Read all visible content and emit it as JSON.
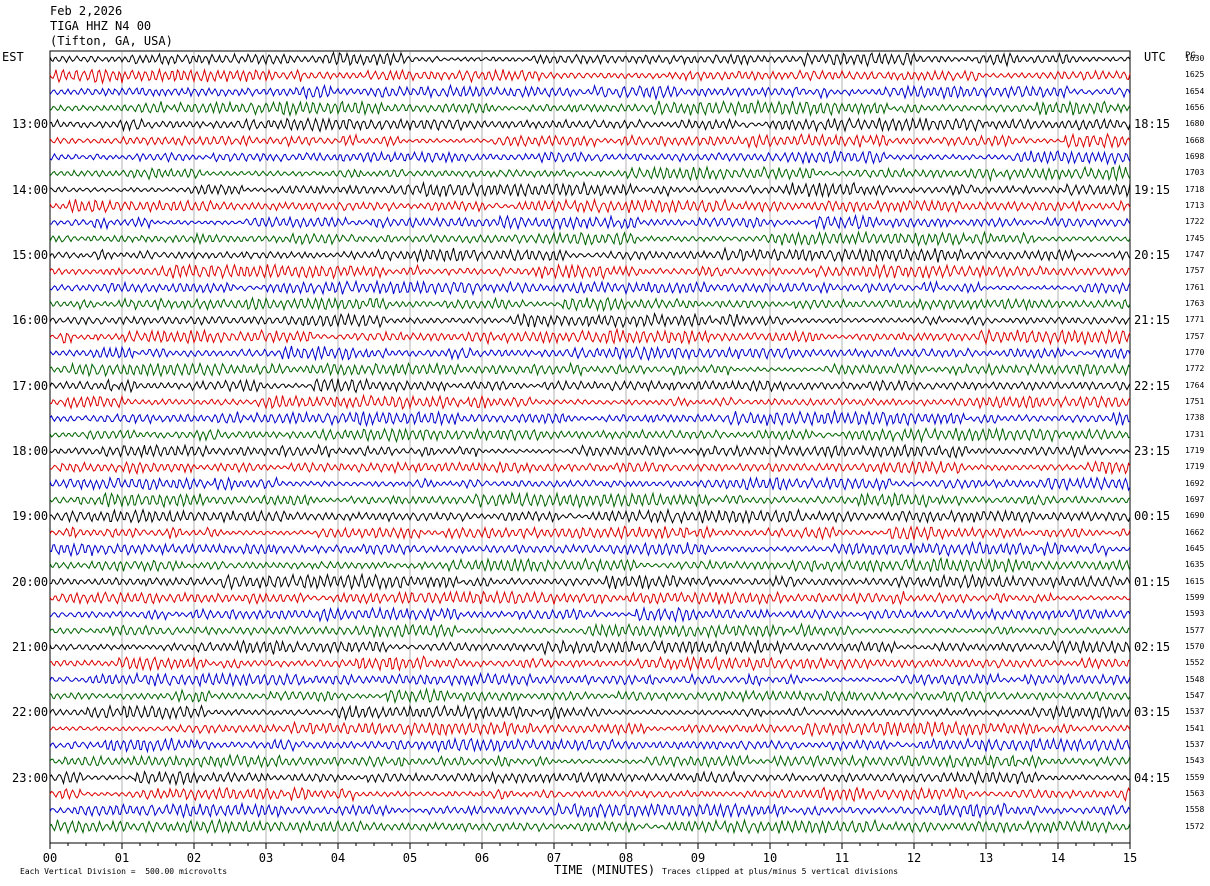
{
  "header": {
    "date": "Feb 2,2026",
    "station": "TIGA HHZ N4 00",
    "location": "(Tifton, GA, USA)"
  },
  "left_axis_label": "EST",
  "right_axis_label": "UTC",
  "rms_label": "PG",
  "footer": {
    "scale": "Each Vertical Division =  500.00 microvolts",
    "xlabel": "TIME (MINUTES)",
    "clip": "Traces clipped at plus/minus 5 vertical divisions"
  },
  "colors": [
    "#000000",
    "#dd0000",
    "#0000cc",
    "#006400"
  ],
  "chart_data": {
    "type": "line",
    "title": "",
    "xlabel": "TIME (MINUTES)",
    "x_ticks": [
      "00",
      "01",
      "02",
      "03",
      "04",
      "05",
      "06",
      "07",
      "08",
      "09",
      "10",
      "11",
      "12",
      "13",
      "14",
      "15"
    ],
    "xlim": [
      0,
      15
    ],
    "grid": true,
    "est_hour_labels": [
      "13:00",
      "14:00",
      "15:00",
      "16:00",
      "17:00",
      "18:00",
      "19:00",
      "20:00",
      "21:00",
      "22:00",
      "23:00"
    ],
    "utc_hour_labels": [
      "18:15",
      "19:15",
      "20:15",
      "21:15",
      "22:15",
      "23:15",
      "00:15",
      "01:15",
      "02:15",
      "03:15",
      "04:15"
    ],
    "rms_values": [
      "1630",
      "1625",
      "1654",
      "1656",
      "1680",
      "1668",
      "1698",
      "1703",
      "1718",
      "1713",
      "1722",
      "1745",
      "1747",
      "1757",
      "1761",
      "1763",
      "1771",
      "1757",
      "1770",
      "1772",
      "1764",
      "1751",
      "1738",
      "1731",
      "1719",
      "1719",
      "1692",
      "1697",
      "1690",
      "1662",
      "1645",
      "1635",
      "1615",
      "1599",
      "1593",
      "1577",
      "1570",
      "1552",
      "1548",
      "1547",
      "1537",
      "1541",
      "1537",
      "1543",
      "1559",
      "1563",
      "1558",
      "1572"
    ]
  }
}
